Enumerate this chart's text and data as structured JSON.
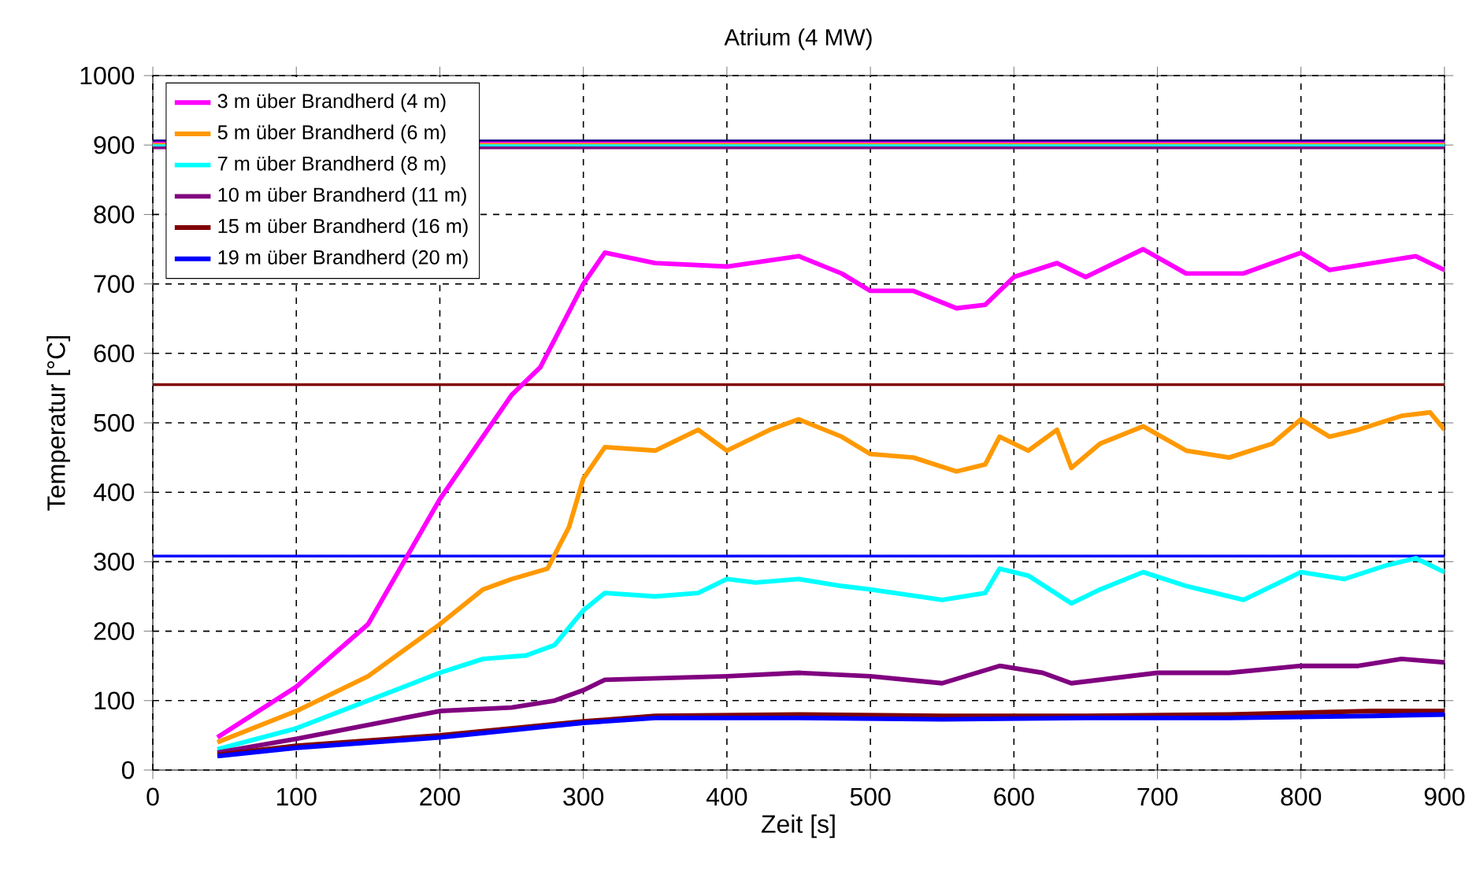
{
  "chart_data": {
    "type": "line",
    "title": "Atrium (4 MW)",
    "xlabel": "Zeit [s]",
    "ylabel": "Temperatur [°C]",
    "xlim": [
      0,
      900
    ],
    "xticks": [
      0,
      100,
      200,
      300,
      400,
      500,
      600,
      700,
      800,
      900
    ],
    "ylim": [
      0,
      1000
    ],
    "yticks": [
      0,
      100,
      200,
      300,
      400,
      500,
      600,
      700,
      800,
      900,
      1000
    ],
    "grid": true,
    "legend": "top left",
    "marker": "none",
    "line_style": "solid",
    "series": [
      {
        "name": "3 m über Brandherd (4 m)",
        "color": "#ff00ff",
        "x": [
          45,
          100,
          150,
          200,
          250,
          270,
          300,
          315,
          350,
          400,
          450,
          480,
          500,
          530,
          560,
          580,
          600,
          630,
          650,
          690,
          720,
          760,
          800,
          820,
          850,
          880,
          900
        ],
        "values": [
          47,
          120,
          210,
          390,
          540,
          580,
          700,
          745,
          730,
          725,
          740,
          715,
          690,
          690,
          665,
          670,
          710,
          730,
          710,
          750,
          715,
          715,
          745,
          720,
          730,
          740,
          720
        ]
      },
      {
        "name": "5 m über Brandherd (6 m)",
        "color": "#ff9900",
        "x": [
          45,
          100,
          150,
          200,
          230,
          250,
          275,
          290,
          300,
          315,
          350,
          380,
          400,
          430,
          450,
          480,
          500,
          530,
          560,
          580,
          590,
          610,
          630,
          640,
          660,
          690,
          720,
          750,
          780,
          800,
          820,
          840,
          870,
          890,
          900
        ],
        "values": [
          40,
          85,
          135,
          210,
          260,
          275,
          290,
          350,
          420,
          465,
          460,
          490,
          460,
          490,
          505,
          480,
          455,
          450,
          430,
          440,
          480,
          460,
          490,
          435,
          470,
          495,
          460,
          450,
          470,
          505,
          480,
          490,
          510,
          515,
          490
        ]
      },
      {
        "name": "7 m über Brandherd (8 m)",
        "color": "#00ffff",
        "x": [
          45,
          100,
          150,
          200,
          230,
          260,
          280,
          300,
          315,
          350,
          380,
          400,
          420,
          450,
          480,
          500,
          550,
          580,
          590,
          610,
          640,
          660,
          690,
          720,
          760,
          800,
          830,
          860,
          880,
          900
        ],
        "values": [
          30,
          60,
          100,
          140,
          160,
          165,
          180,
          230,
          255,
          250,
          255,
          275,
          270,
          275,
          265,
          260,
          245,
          255,
          290,
          280,
          240,
          260,
          285,
          265,
          245,
          285,
          275,
          295,
          305,
          285
        ]
      },
      {
        "name": "10 m über Brandherd (11 m)",
        "color": "#800080",
        "x": [
          45,
          100,
          150,
          200,
          250,
          280,
          300,
          315,
          400,
          450,
          500,
          550,
          590,
          620,
          640,
          700,
          750,
          800,
          840,
          870,
          900
        ],
        "values": [
          25,
          45,
          65,
          85,
          90,
          100,
          115,
          130,
          135,
          140,
          135,
          125,
          150,
          140,
          125,
          140,
          140,
          150,
          150,
          160,
          155
        ]
      },
      {
        "name": "15 m über Brandherd (16 m)",
        "color": "#800000",
        "x": [
          45,
          100,
          200,
          300,
          350,
          450,
          550,
          650,
          750,
          850,
          900
        ],
        "values": [
          22,
          35,
          50,
          70,
          78,
          80,
          78,
          78,
          80,
          85,
          85
        ]
      },
      {
        "name": "19 m über Brandherd (20 m)",
        "color": "#0000ff",
        "x": [
          45,
          100,
          200,
          300,
          350,
          450,
          550,
          650,
          750,
          850,
          900
        ],
        "values": [
          20,
          32,
          47,
          68,
          75,
          75,
          73,
          75,
          75,
          78,
          80
        ]
      }
    ],
    "ref_lines": [
      {
        "axis": "y",
        "value": 906,
        "color": "#000080"
      },
      {
        "axis": "y",
        "value": 903,
        "color": "#ff00ff"
      },
      {
        "axis": "y",
        "value": 901,
        "color": "#ff9900"
      },
      {
        "axis": "y",
        "value": 899,
        "color": "#00ffff"
      },
      {
        "axis": "y",
        "value": 896,
        "color": "#800080"
      },
      {
        "axis": "y",
        "value": 555,
        "color": "#800000"
      },
      {
        "axis": "y",
        "value": 308,
        "color": "#0000ff"
      }
    ]
  }
}
